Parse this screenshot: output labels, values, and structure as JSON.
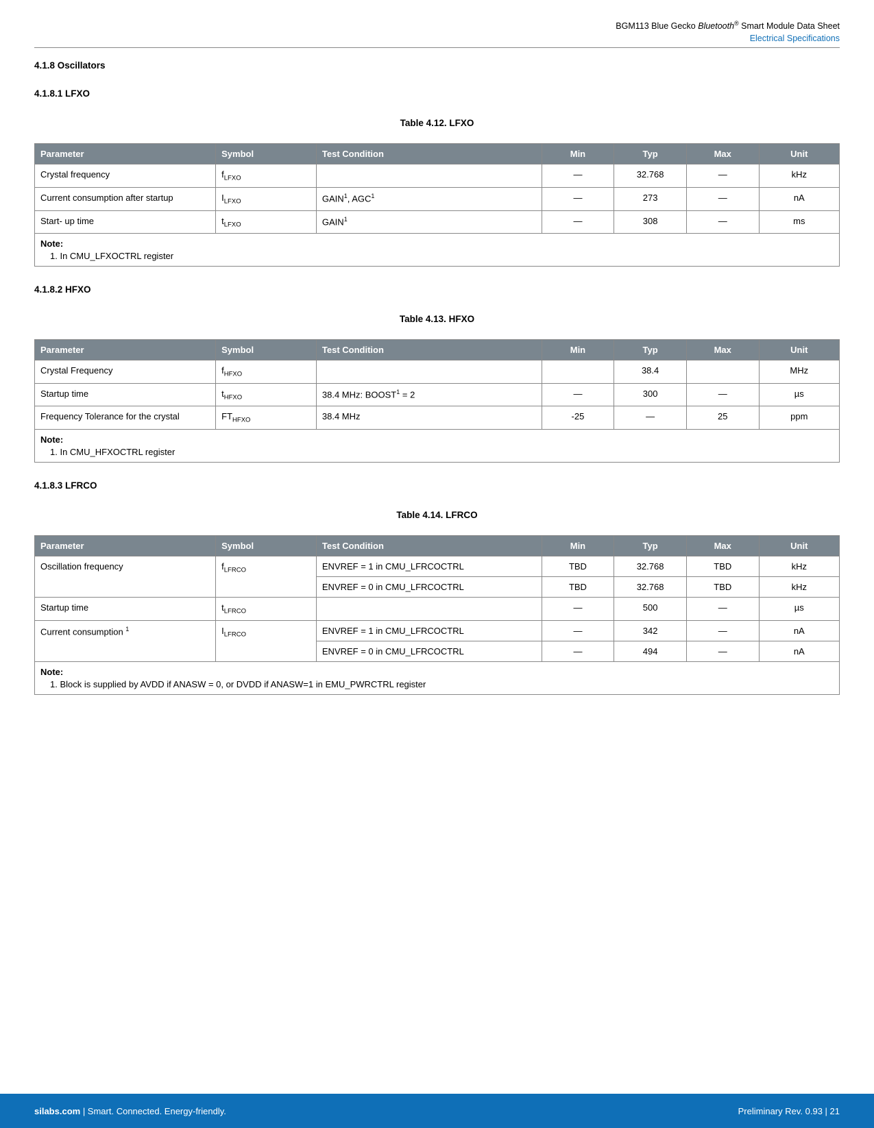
{
  "header": {
    "line1_a": "BGM113 Blue Gecko ",
    "line1_b_italic": "Bluetooth",
    "line1_sup": "®",
    "line1_c": " Smart Module Data Sheet",
    "line2": "Electrical Specifications"
  },
  "sections": {
    "s1": "4.1.8  Oscillators",
    "s1_1": "4.1.8.1  LFXO",
    "s1_2": "4.1.8.2  HFXO",
    "s1_3": "4.1.8.3  LFRCO"
  },
  "table12": {
    "title": "Table 4.12.  LFXO",
    "headers": [
      "Parameter",
      "Symbol",
      "Test Condition",
      "Min",
      "Typ",
      "Max",
      "Unit"
    ],
    "note": "1. In CMU_LFXOCTRL register",
    "rows": [
      {
        "param": "Crystal frequency",
        "sym_pre": "f",
        "sym_sub": "LFXO",
        "cond": "",
        "min": "—",
        "typ": "32.768",
        "max": "—",
        "unit": "kHz"
      },
      {
        "param": "Current consumption after startup",
        "sym_pre": "I",
        "sym_sub": "LFXO",
        "cond_parts": [
          "GAIN",
          "1",
          ", AGC",
          "1"
        ],
        "min": "—",
        "typ": "273",
        "max": "—",
        "unit": "nA"
      },
      {
        "param": "Start- up time",
        "sym_pre": "t",
        "sym_sub": "LFXO",
        "cond_parts": [
          "GAIN",
          "1"
        ],
        "min": "—",
        "typ": "308",
        "max": "—",
        "unit": "ms"
      }
    ]
  },
  "table13": {
    "title": "Table 4.13.  HFXO",
    "headers": [
      "Parameter",
      "Symbol",
      "Test Condition",
      "Min",
      "Typ",
      "Max",
      "Unit"
    ],
    "note": "1. In CMU_HFXOCTRL register",
    "rows": [
      {
        "param": "Crystal Frequency",
        "sym_pre": "f",
        "sym_sub": "HFXO",
        "cond": "",
        "min": "",
        "typ": "38.4",
        "max": "",
        "unit": "MHz"
      },
      {
        "param": "Startup time",
        "sym_pre": "t",
        "sym_sub": "HFXO",
        "cond_parts": [
          "38.4 MHz: BOOST",
          "1",
          " = 2"
        ],
        "min": "—",
        "typ": "300",
        "max": "—",
        "unit": "µs"
      },
      {
        "param": "Frequency Tolerance for the crystal",
        "sym_pre": "FT",
        "sym_sub": "HFXO",
        "cond": "38.4 MHz",
        "min": "-25",
        "typ": "—",
        "max": "25",
        "unit": "ppm"
      }
    ]
  },
  "table14": {
    "title": "Table 4.14.  LFRCO",
    "headers": [
      "Parameter",
      "Symbol",
      "Test Condition",
      "Min",
      "Typ",
      "Max",
      "Unit"
    ],
    "note": "1. Block is supplied by AVDD if ANASW = 0, or DVDD if ANASW=1 in EMU_PWRCTRL register",
    "rows": [
      {
        "param": "Oscillation frequency",
        "param_rowspan": 2,
        "sym_pre": "f",
        "sym_sub": "LFRCO",
        "sym_rowspan": 2,
        "cond": "ENVREF = 1 in CMU_LFRCOCTRL",
        "min": "TBD",
        "typ": "32.768",
        "max": "TBD",
        "unit": "kHz"
      },
      {
        "cond": "ENVREF = 0 in CMU_LFRCOCTRL",
        "min": "TBD",
        "typ": "32.768",
        "max": "TBD",
        "unit": "kHz"
      },
      {
        "param": "Startup time",
        "sym_pre": "t",
        "sym_sub": "LFRCO",
        "cond": "",
        "min": "—",
        "typ": "500",
        "max": "—",
        "unit": "µs"
      },
      {
        "param_parts": [
          "Current consumption ",
          "1"
        ],
        "param_rowspan": 2,
        "sym_pre": "I",
        "sym_sub": "LFRCO",
        "sym_rowspan": 2,
        "cond": "ENVREF = 1 in CMU_LFRCOCTRL",
        "min": "—",
        "typ": "342",
        "max": "—",
        "unit": "nA"
      },
      {
        "cond": "ENVREF = 0 in CMU_LFRCOCTRL",
        "min": "—",
        "typ": "494",
        "max": "—",
        "unit": "nA"
      }
    ]
  },
  "footer": {
    "left_bold": "silabs.com",
    "left_rest": " | Smart. Connected. Energy-friendly.",
    "right": "Preliminary Rev. 0.93  |  21"
  },
  "labels": {
    "note": "Note:"
  },
  "colors": {
    "header_bg": "#7a868f",
    "header_fg": "#ffffff",
    "footer_bg": "#0f6fb7",
    "link_blue": "#0f6fb7",
    "border": "#888888"
  }
}
